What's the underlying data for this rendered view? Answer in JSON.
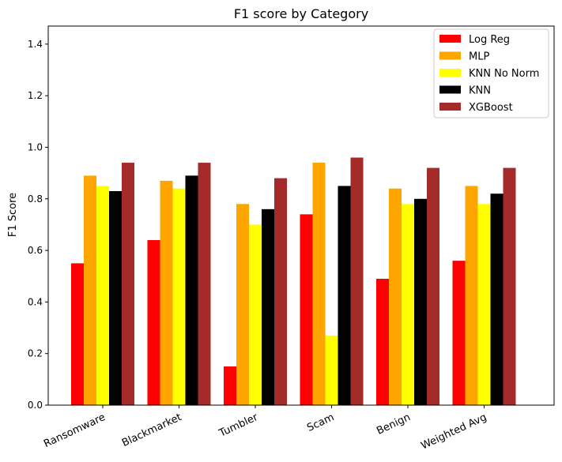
{
  "chart_data": {
    "type": "bar",
    "title": "F1 score by Category",
    "xlabel": "",
    "ylabel": "F1 Score",
    "ylim": [
      0,
      1.47
    ],
    "yticks": [
      0.0,
      0.2,
      0.4,
      0.6,
      0.8,
      1.0,
      1.2,
      1.4
    ],
    "ytick_labels": [
      "0.0",
      "0.2",
      "0.4",
      "0.6",
      "0.8",
      "1.0",
      "1.2",
      "1.4"
    ],
    "grid": false,
    "legend_position": "top-right",
    "categories": [
      "Ransomware",
      "Blackmarket",
      "Tumbler",
      "Scam",
      "Benign",
      "Weighted Avg"
    ],
    "series": [
      {
        "name": "Log Reg",
        "color": "#ff0000",
        "values": [
          0.55,
          0.64,
          0.15,
          0.74,
          0.49,
          0.56
        ]
      },
      {
        "name": "MLP",
        "color": "#ffa500",
        "values": [
          0.89,
          0.87,
          0.78,
          0.94,
          0.84,
          0.85
        ]
      },
      {
        "name": "KNN No Norm",
        "color": "#ffff00",
        "values": [
          0.85,
          0.84,
          0.7,
          0.27,
          0.78,
          0.78
        ]
      },
      {
        "name": "KNN",
        "color": "#000000",
        "values": [
          0.83,
          0.89,
          0.76,
          0.85,
          0.8,
          0.82
        ]
      },
      {
        "name": "XGBoost",
        "color": "#a52a2a",
        "values": [
          0.94,
          0.94,
          0.88,
          0.96,
          0.92,
          0.92
        ]
      }
    ]
  }
}
